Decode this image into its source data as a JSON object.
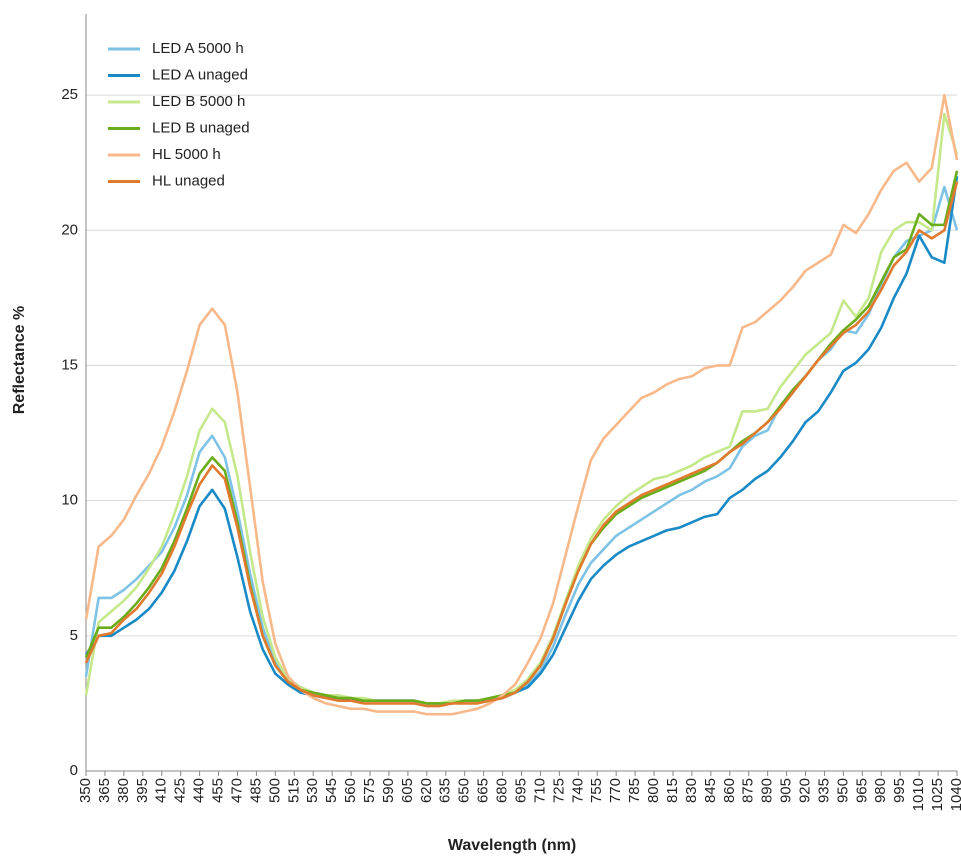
{
  "chart_data": {
    "type": "line",
    "x_label": "Wavelength (nm)",
    "y_label": "Reflectance %",
    "x": [
      350,
      360,
      370,
      380,
      390,
      400,
      410,
      420,
      430,
      440,
      450,
      460,
      470,
      480,
      490,
      500,
      510,
      520,
      530,
      540,
      550,
      560,
      570,
      580,
      590,
      600,
      610,
      620,
      630,
      640,
      650,
      660,
      670,
      680,
      690,
      700,
      710,
      720,
      730,
      740,
      750,
      760,
      770,
      780,
      790,
      800,
      810,
      820,
      830,
      840,
      850,
      860,
      870,
      880,
      890,
      900,
      910,
      920,
      930,
      940,
      950,
      960,
      970,
      980,
      990,
      1000,
      1010,
      1020,
      1030,
      1040
    ],
    "xlim": [
      350,
      1040
    ],
    "xticks": [
      350,
      365,
      380,
      395,
      410,
      425,
      440,
      455,
      470,
      485,
      500,
      515,
      530,
      545,
      560,
      575,
      590,
      605,
      620,
      635,
      650,
      665,
      680,
      695,
      710,
      725,
      740,
      755,
      770,
      785,
      800,
      815,
      830,
      845,
      860,
      875,
      890,
      905,
      920,
      935,
      950,
      965,
      980,
      995,
      1010,
      1025,
      1040
    ],
    "ylim": [
      0,
      28
    ],
    "yticks": [
      0,
      5,
      10,
      15,
      20,
      25
    ],
    "grid": true,
    "legend": "upper-left",
    "series": [
      {
        "name": "LED A 5000 h",
        "color": "#7ec3e6",
        "values": [
          3.5,
          6.4,
          6.4,
          6.7,
          7.1,
          7.6,
          8.1,
          9.0,
          10.2,
          11.8,
          12.4,
          11.6,
          9.6,
          7.3,
          5.3,
          4.0,
          3.4,
          3.1,
          2.9,
          2.8,
          2.7,
          2.7,
          2.6,
          2.6,
          2.6,
          2.6,
          2.6,
          2.5,
          2.5,
          2.5,
          2.6,
          2.6,
          2.7,
          2.8,
          2.9,
          3.2,
          3.7,
          4.6,
          5.8,
          6.9,
          7.7,
          8.2,
          8.7,
          9.0,
          9.3,
          9.6,
          9.9,
          10.2,
          10.4,
          10.7,
          10.9,
          11.2,
          12.0,
          12.4,
          12.6,
          13.5,
          14.1,
          14.6,
          15.2,
          15.6,
          16.3,
          16.2,
          16.9,
          18.0,
          19.0,
          19.6,
          19.8,
          20.0,
          21.6,
          20.0
        ]
      },
      {
        "name": "LED A unaged",
        "color": "#1a8ac6",
        "values": [
          4.3,
          5.0,
          5.0,
          5.3,
          5.6,
          6.0,
          6.6,
          7.4,
          8.5,
          9.8,
          10.4,
          9.7,
          7.9,
          5.9,
          4.5,
          3.6,
          3.2,
          2.9,
          2.8,
          2.7,
          2.7,
          2.6,
          2.6,
          2.6,
          2.6,
          2.6,
          2.6,
          2.5,
          2.5,
          2.5,
          2.6,
          2.6,
          2.6,
          2.7,
          2.9,
          3.1,
          3.6,
          4.3,
          5.3,
          6.3,
          7.1,
          7.6,
          8.0,
          8.3,
          8.5,
          8.7,
          8.9,
          9.0,
          9.2,
          9.4,
          9.5,
          10.1,
          10.4,
          10.8,
          11.1,
          11.6,
          12.2,
          12.9,
          13.3,
          14.0,
          14.8,
          15.1,
          15.6,
          16.4,
          17.5,
          18.4,
          19.8,
          19.0,
          18.8,
          22.0
        ]
      },
      {
        "name": "LED B 5000 h",
        "color": "#c4e88a",
        "values": [
          2.8,
          5.5,
          5.9,
          6.3,
          6.8,
          7.5,
          8.3,
          9.5,
          10.9,
          12.6,
          13.4,
          12.9,
          10.9,
          8.1,
          5.7,
          4.2,
          3.4,
          3.1,
          2.9,
          2.8,
          2.8,
          2.7,
          2.7,
          2.6,
          2.6,
          2.6,
          2.6,
          2.5,
          2.5,
          2.6,
          2.6,
          2.6,
          2.7,
          2.8,
          3.0,
          3.4,
          4.0,
          5.0,
          6.3,
          7.6,
          8.6,
          9.3,
          9.8,
          10.2,
          10.5,
          10.8,
          10.9,
          11.1,
          11.3,
          11.6,
          11.8,
          12.0,
          13.3,
          13.3,
          13.4,
          14.2,
          14.8,
          15.4,
          15.8,
          16.2,
          17.4,
          16.8,
          17.5,
          19.2,
          20.0,
          20.3,
          20.3,
          20.0,
          24.3,
          22.8
        ]
      },
      {
        "name": "LED B unaged",
        "color": "#6aad1c",
        "values": [
          4.2,
          5.3,
          5.3,
          5.7,
          6.2,
          6.8,
          7.5,
          8.5,
          9.7,
          11.0,
          11.6,
          11.1,
          9.2,
          6.9,
          5.0,
          3.9,
          3.3,
          3.0,
          2.9,
          2.8,
          2.7,
          2.7,
          2.6,
          2.6,
          2.6,
          2.6,
          2.6,
          2.5,
          2.5,
          2.5,
          2.6,
          2.6,
          2.7,
          2.8,
          2.9,
          3.3,
          3.9,
          4.9,
          6.2,
          7.4,
          8.4,
          9.0,
          9.5,
          9.8,
          10.1,
          10.3,
          10.5,
          10.7,
          10.9,
          11.1,
          11.4,
          11.8,
          12.2,
          12.5,
          12.9,
          13.5,
          14.1,
          14.6,
          15.2,
          15.8,
          16.3,
          16.7,
          17.2,
          18.1,
          19.0,
          19.3,
          20.6,
          20.2,
          20.2,
          22.2
        ]
      },
      {
        "name": "HL 5000 h",
        "color": "#f7b88a",
        "values": [
          5.6,
          8.3,
          8.7,
          9.3,
          10.2,
          11.0,
          12.0,
          13.3,
          14.8,
          16.5,
          17.1,
          16.5,
          14.0,
          10.5,
          7.0,
          4.7,
          3.5,
          3.0,
          2.7,
          2.5,
          2.4,
          2.3,
          2.3,
          2.2,
          2.2,
          2.2,
          2.2,
          2.1,
          2.1,
          2.1,
          2.2,
          2.3,
          2.5,
          2.8,
          3.2,
          4.0,
          4.9,
          6.2,
          8.0,
          9.8,
          11.5,
          12.3,
          12.8,
          13.3,
          13.8,
          14.0,
          14.3,
          14.5,
          14.6,
          14.9,
          15.0,
          15.0,
          16.4,
          16.6,
          17.0,
          17.4,
          17.9,
          18.5,
          18.8,
          19.1,
          20.2,
          19.9,
          20.6,
          21.5,
          22.2,
          22.5,
          21.8,
          22.3,
          25.0,
          22.6
        ]
      },
      {
        "name": "HL unaged",
        "color": "#e07a2e",
        "values": [
          4.0,
          5.0,
          5.1,
          5.6,
          6.0,
          6.6,
          7.3,
          8.3,
          9.5,
          10.6,
          11.3,
          10.8,
          9.0,
          6.8,
          5.0,
          3.9,
          3.3,
          3.0,
          2.8,
          2.7,
          2.6,
          2.6,
          2.5,
          2.5,
          2.5,
          2.5,
          2.5,
          2.4,
          2.4,
          2.5,
          2.5,
          2.5,
          2.6,
          2.7,
          2.9,
          3.3,
          3.9,
          4.9,
          6.2,
          7.4,
          8.4,
          9.1,
          9.6,
          9.9,
          10.2,
          10.4,
          10.6,
          10.8,
          11.0,
          11.2,
          11.4,
          11.8,
          12.1,
          12.5,
          12.9,
          13.4,
          14.0,
          14.6,
          15.2,
          15.7,
          16.2,
          16.5,
          17.0,
          17.8,
          18.7,
          19.2,
          20.0,
          19.7,
          20.0,
          21.8
        ]
      }
    ]
  }
}
